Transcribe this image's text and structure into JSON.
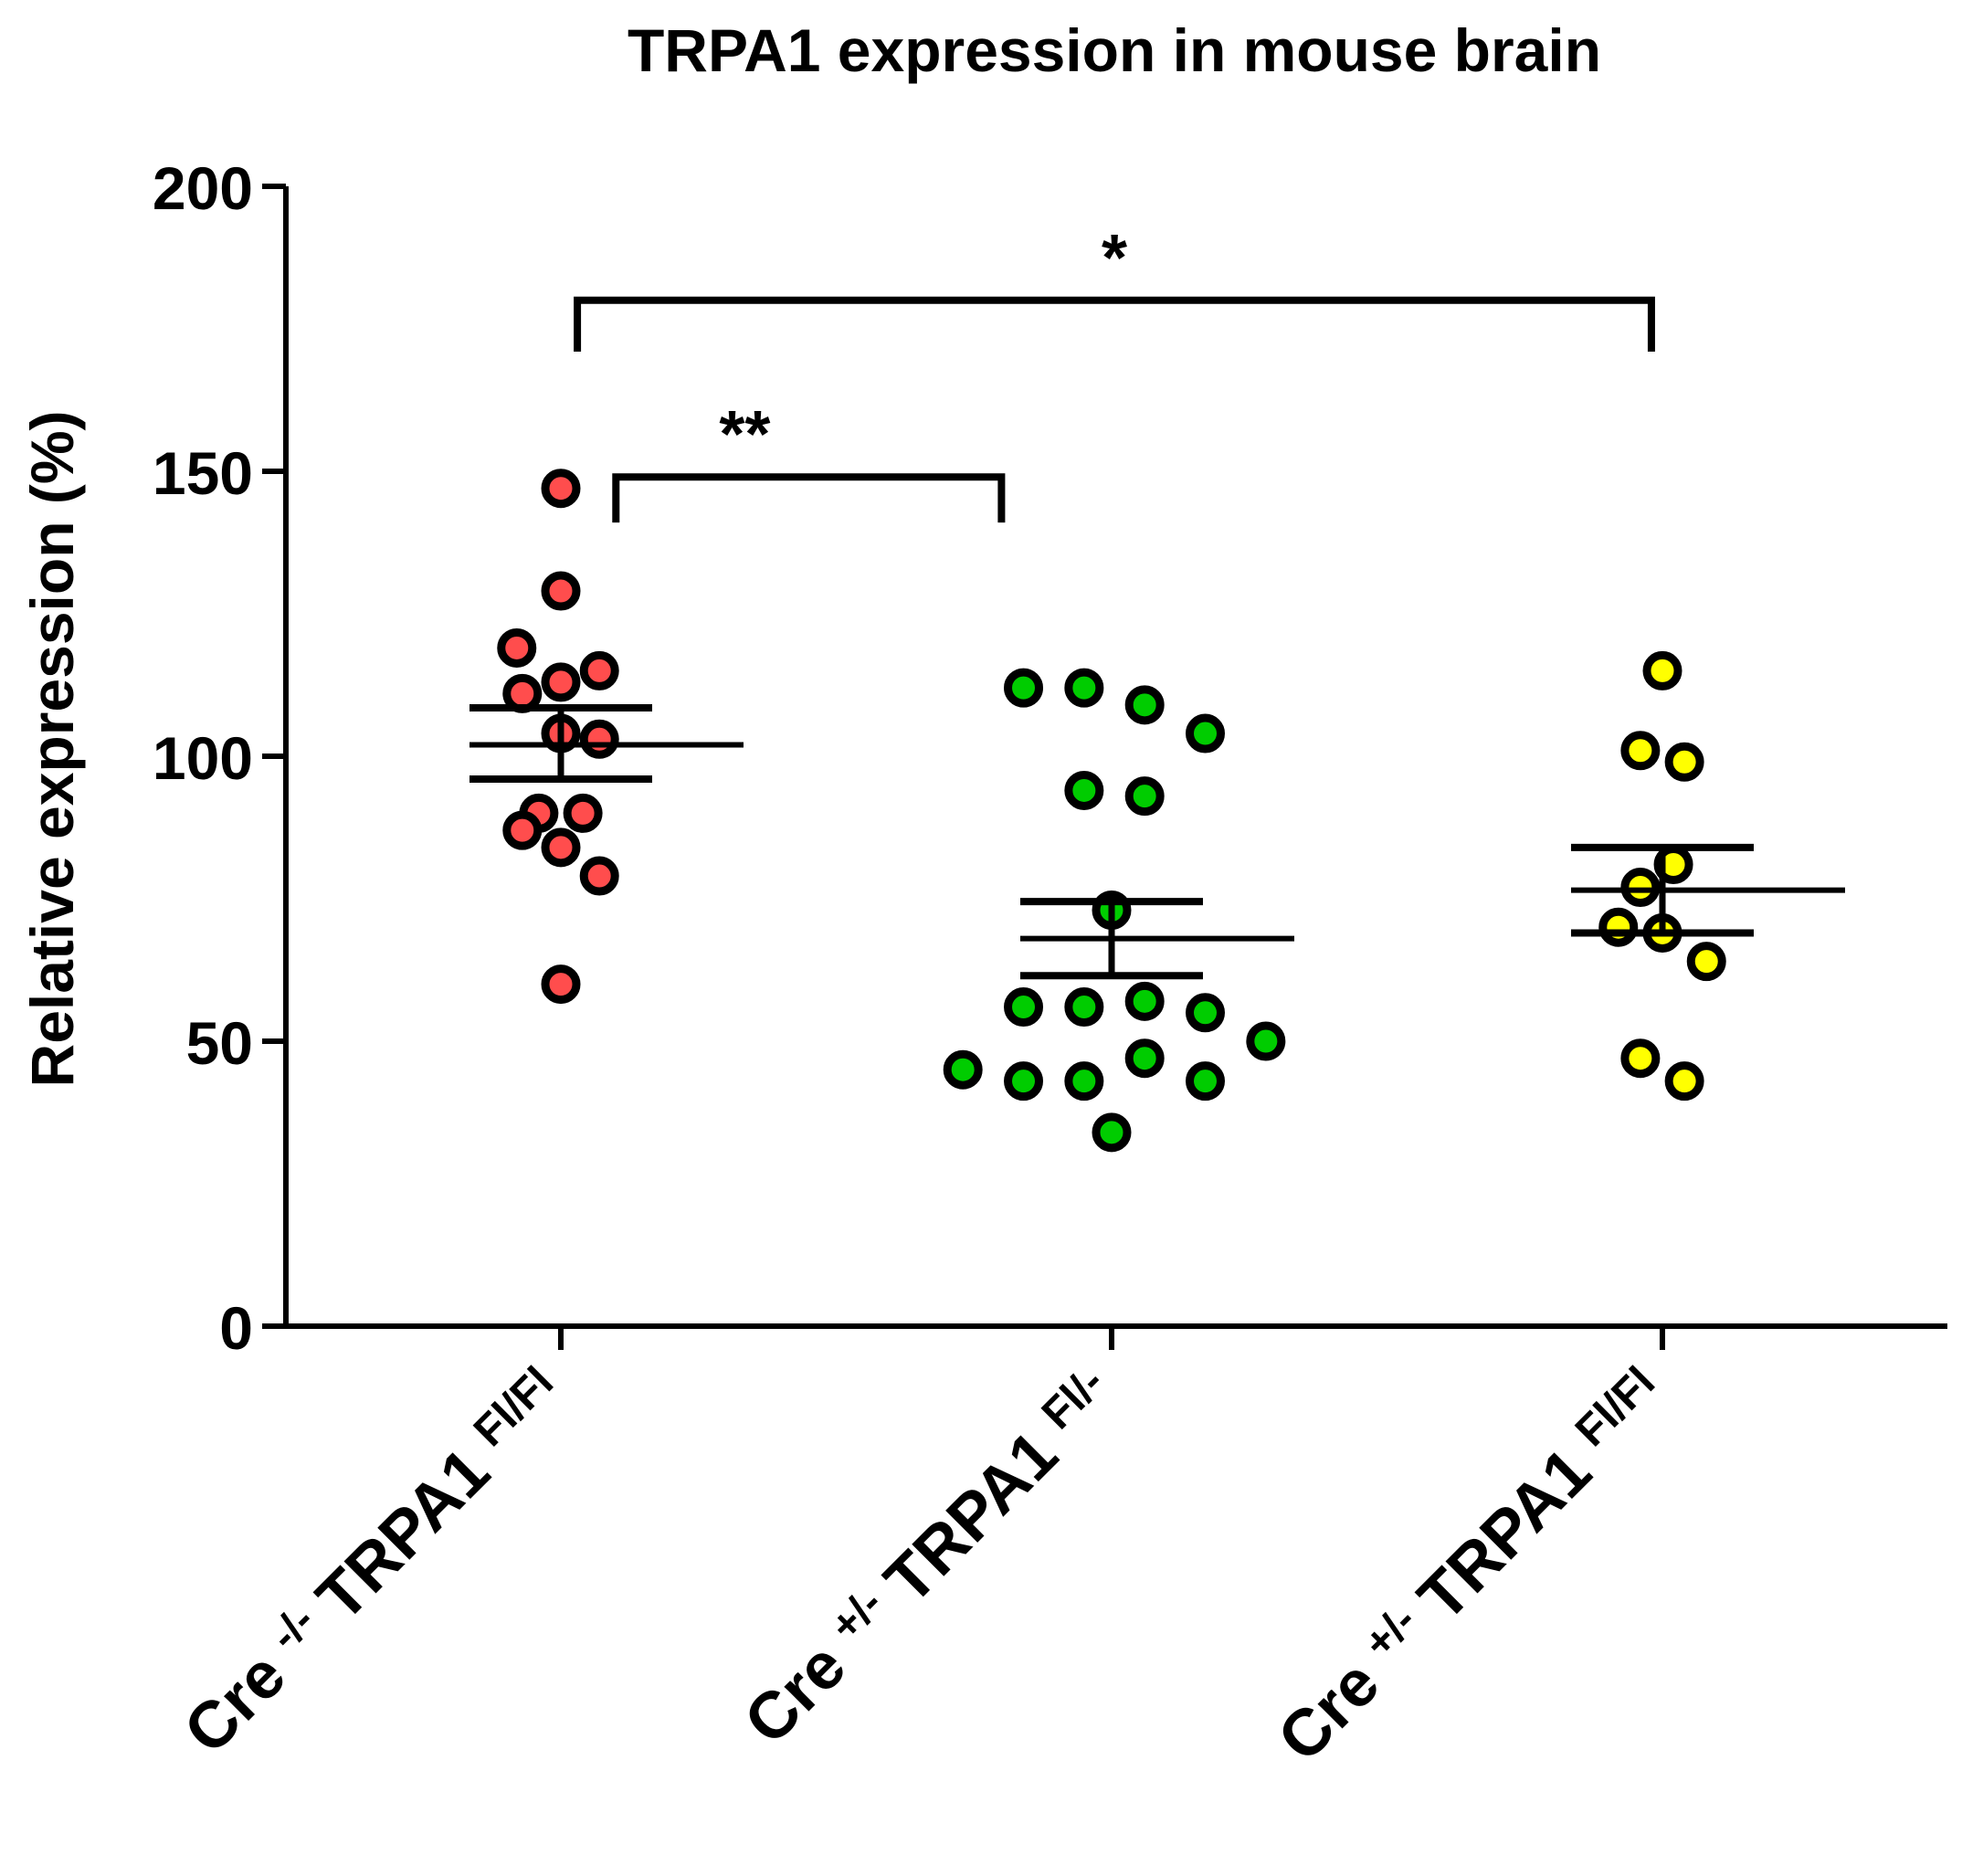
{
  "chart_data": {
    "type": "scatter",
    "subtype": "dot-plot-with-mean-sem",
    "title": "TRPA1 expression in mouse brain",
    "xlabel": "",
    "ylabel": "Relative expression (%)",
    "ylim": [
      0,
      200
    ],
    "yticks": [
      0,
      50,
      100,
      150,
      200
    ],
    "grid": false,
    "groups": [
      {
        "prefix": "Cre ",
        "genotype": "-/-",
        "gene": " TRPA1 ",
        "allele": "Fl/Fl",
        "color": "#ff4d4d",
        "mean": 102,
        "sem_upper": 108.5,
        "sem_lower": 96,
        "points": [
          {
            "offset": 0.0,
            "value": 147
          },
          {
            "offset": 0.0,
            "value": 129
          },
          {
            "offset": -0.08,
            "value": 119
          },
          {
            "offset": 0.07,
            "value": 115
          },
          {
            "offset": 0.0,
            "value": 113
          },
          {
            "offset": -0.07,
            "value": 111
          },
          {
            "offset": 0.0,
            "value": 104
          },
          {
            "offset": 0.07,
            "value": 103
          },
          {
            "offset": -0.04,
            "value": 90
          },
          {
            "offset": 0.04,
            "value": 90
          },
          {
            "offset": -0.07,
            "value": 87
          },
          {
            "offset": 0.0,
            "value": 84
          },
          {
            "offset": 0.07,
            "value": 79
          },
          {
            "offset": 0.0,
            "value": 60
          }
        ]
      },
      {
        "prefix": "Cre ",
        "genotype": "+/-",
        "gene": " TRPA1 ",
        "allele": "Fl/-",
        "color": "#00cc00",
        "mean": 68,
        "sem_upper": 74.5,
        "sem_lower": 61.5,
        "points": [
          {
            "offset": -0.16,
            "value": 112
          },
          {
            "offset": -0.05,
            "value": 112
          },
          {
            "offset": 0.06,
            "value": 109
          },
          {
            "offset": 0.17,
            "value": 104
          },
          {
            "offset": -0.05,
            "value": 94
          },
          {
            "offset": 0.06,
            "value": 93
          },
          {
            "offset": 0.0,
            "value": 73
          },
          {
            "offset": 0.06,
            "value": 57
          },
          {
            "offset": -0.16,
            "value": 56
          },
          {
            "offset": -0.05,
            "value": 56
          },
          {
            "offset": 0.17,
            "value": 55
          },
          {
            "offset": 0.28,
            "value": 50
          },
          {
            "offset": 0.06,
            "value": 47
          },
          {
            "offset": -0.27,
            "value": 45
          },
          {
            "offset": -0.16,
            "value": 43
          },
          {
            "offset": -0.05,
            "value": 43
          },
          {
            "offset": 0.17,
            "value": 43
          },
          {
            "offset": 0.0,
            "value": 34
          }
        ]
      },
      {
        "prefix": "Cre ",
        "genotype": "+/-",
        "gene": " TRPA1 ",
        "allele": "Fl/Fl",
        "color": "#ffff00",
        "mean": 76.5,
        "sem_upper": 84,
        "sem_lower": 69,
        "points": [
          {
            "offset": 0.0,
            "value": 115
          },
          {
            "offset": -0.04,
            "value": 101
          },
          {
            "offset": 0.04,
            "value": 99
          },
          {
            "offset": 0.02,
            "value": 81
          },
          {
            "offset": -0.04,
            "value": 77
          },
          {
            "offset": -0.08,
            "value": 70
          },
          {
            "offset": 0.0,
            "value": 69
          },
          {
            "offset": 0.08,
            "value": 64
          },
          {
            "offset": -0.04,
            "value": 47
          },
          {
            "offset": 0.04,
            "value": 43
          }
        ]
      }
    ],
    "significance": [
      {
        "from_group": 0,
        "to_group": 1,
        "label": "**",
        "y": 149,
        "drop": 8,
        "from_offset": 0.1,
        "to_offset": -0.2
      },
      {
        "from_group": 0,
        "to_group": 2,
        "label": "*",
        "y": 180,
        "drop": 9,
        "from_offset": 0.03,
        "to_offset": -0.02
      }
    ]
  }
}
